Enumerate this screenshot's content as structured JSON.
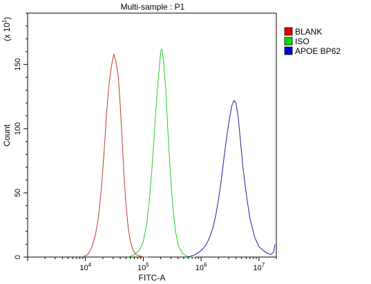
{
  "chart_data": {
    "type": "line",
    "title": "Multi-sample : P1",
    "xlabel": "FITC-A",
    "ylabel": "Count",
    "y_multiplier": "(x 10",
    "y_multiplier_exp": "1",
    "y_multiplier_close": ")",
    "x_scale": "log",
    "xlim": [
      1000,
      20000000
    ],
    "ylim": [
      0,
      190
    ],
    "x_ticks": [
      {
        "value": 10000,
        "base": "10",
        "exp": "4"
      },
      {
        "value": 100000,
        "base": "10",
        "exp": "5"
      },
      {
        "value": 1000000,
        "base": "10",
        "exp": "6"
      },
      {
        "value": 10000000,
        "base": "10",
        "exp": "7"
      }
    ],
    "y_ticks": [
      {
        "value": 0,
        "label": "0"
      },
      {
        "value": 50,
        "label": "50"
      },
      {
        "value": 100,
        "label": "100"
      },
      {
        "value": 150,
        "label": "150"
      }
    ],
    "legend_position": "top-right",
    "series": [
      {
        "name": "BLANK",
        "color": "#c0392b",
        "legend_color": "#e00000",
        "x": [
          9000,
          11000,
          13000,
          15000,
          17000,
          19000,
          21000,
          23000,
          25000,
          27000,
          29000,
          31000,
          33000,
          35000,
          37000,
          40000,
          43000,
          46000,
          50000,
          55000,
          60000,
          67000,
          75000,
          85000,
          100000,
          120000
        ],
        "y": [
          0,
          2,
          8,
          18,
          33,
          55,
          82,
          110,
          130,
          143,
          152,
          158,
          154,
          148,
          140,
          118,
          92,
          66,
          42,
          22,
          12,
          5,
          2,
          1,
          0,
          0
        ]
      },
      {
        "name": "ISO",
        "color": "#22cc22",
        "legend_color": "#00e000",
        "x": [
          55000,
          70000,
          85000,
          100000,
          115000,
          130000,
          145000,
          160000,
          175000,
          190000,
          200000,
          210000,
          225000,
          245000,
          265000,
          290000,
          320000,
          360000,
          410000,
          470000,
          550000,
          650000,
          800000
        ],
        "y": [
          0,
          2,
          5,
          12,
          26,
          48,
          76,
          105,
          130,
          148,
          160,
          162,
          152,
          130,
          100,
          70,
          42,
          20,
          8,
          3,
          1,
          0,
          0
        ]
      },
      {
        "name": "APOE BP62",
        "color": "#1a1aa0",
        "legend_color": "#0000e0",
        "x": [
          600000,
          800000,
          1000000,
          1200000,
          1400000,
          1600000,
          1800000,
          2000000,
          2200000,
          2500000,
          2800000,
          3100000,
          3400000,
          3700000,
          4000000,
          4400000,
          4800000,
          5300000,
          6000000,
          7000000,
          8500000,
          10000000,
          12000000,
          14000000,
          16000000,
          18000000,
          19000000
        ],
        "y": [
          0,
          2,
          5,
          9,
          15,
          23,
          33,
          45,
          58,
          78,
          95,
          108,
          118,
          122,
          120,
          108,
          90,
          70,
          50,
          30,
          15,
          8,
          5,
          3,
          2,
          4,
          10
        ]
      }
    ]
  }
}
